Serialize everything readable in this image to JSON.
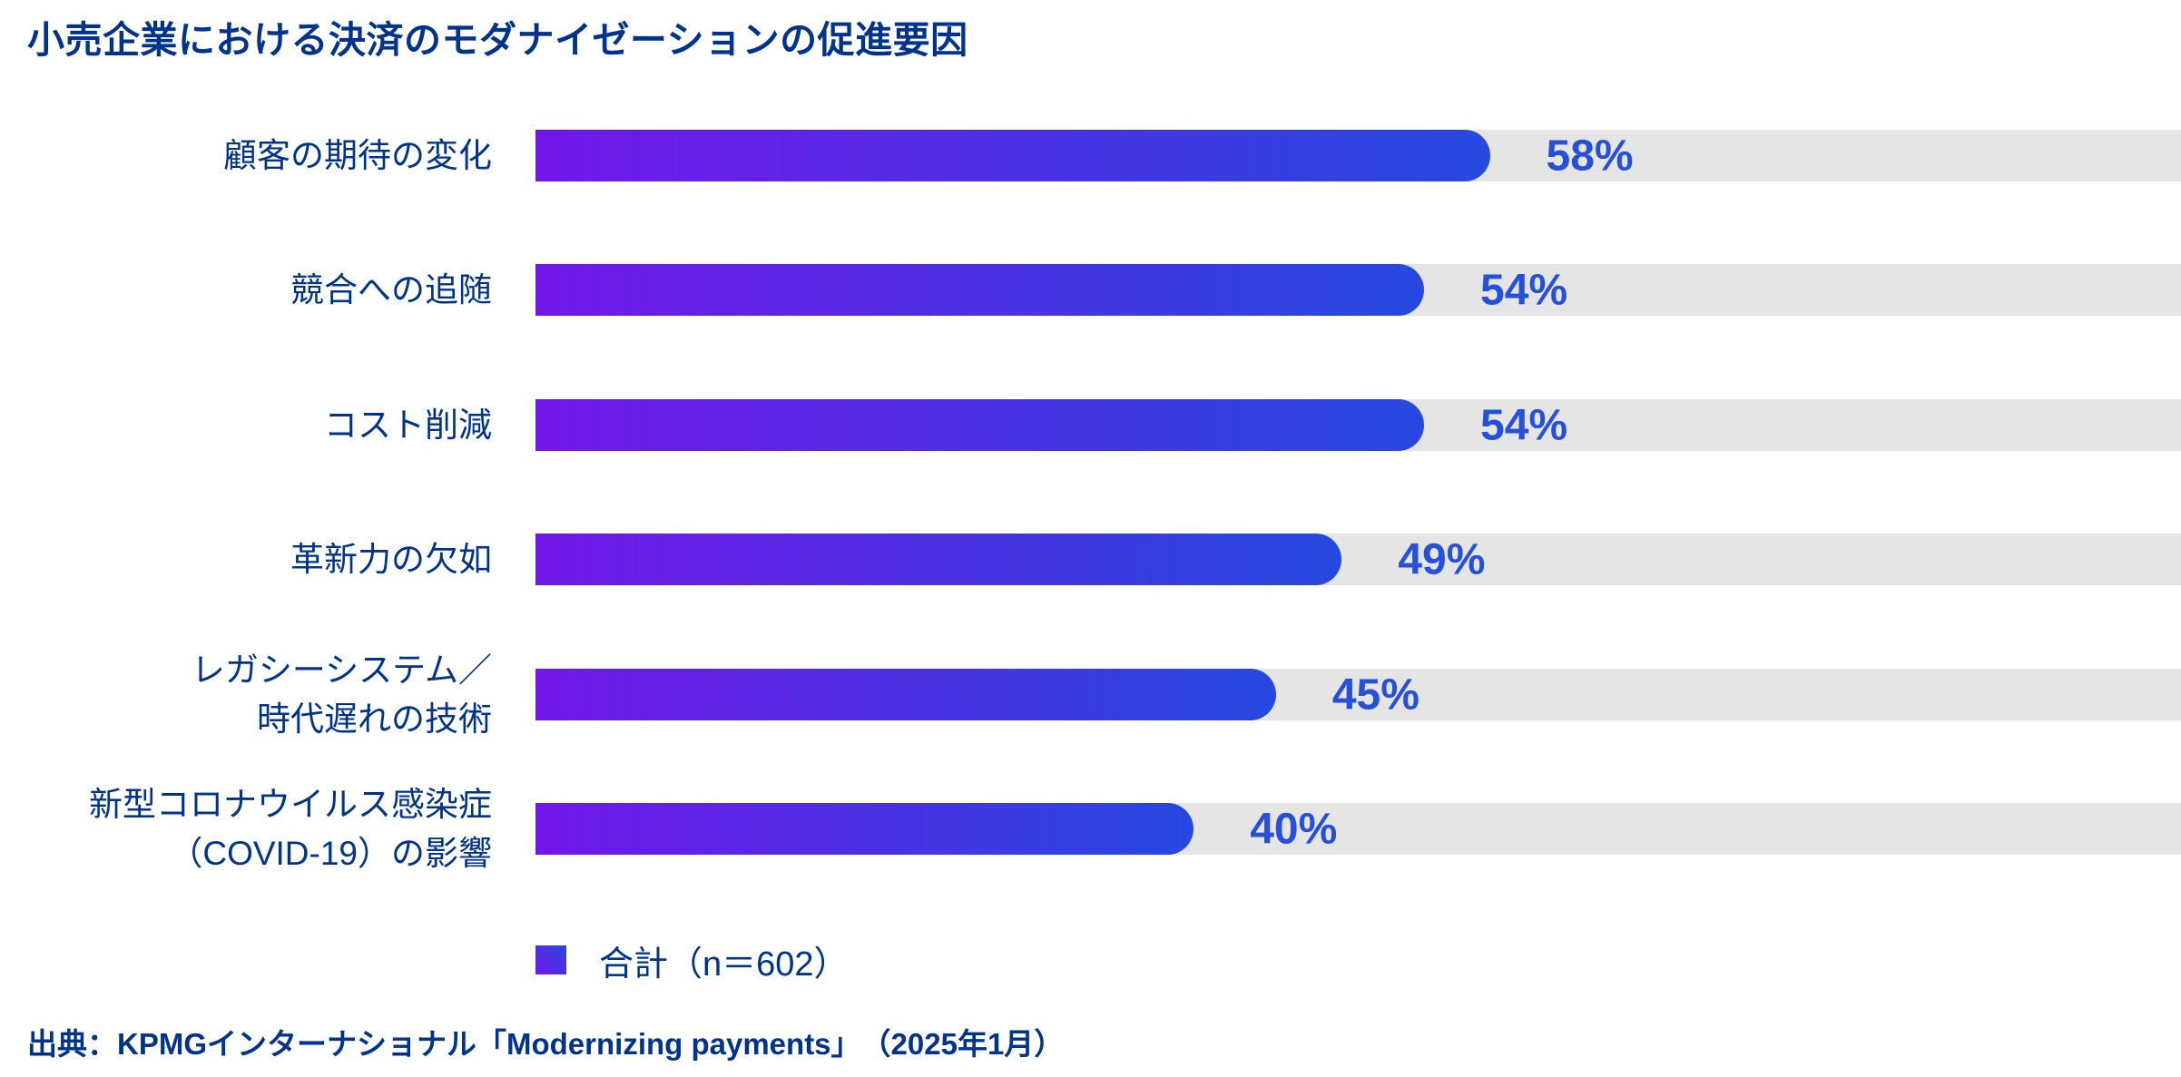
{
  "chart_data": {
    "type": "bar",
    "orientation": "horizontal",
    "title": "小売企業における決済のモダナイゼーションの促進要因",
    "categories": [
      "顧客の期待の変化",
      "競合への追随",
      "コスト削減",
      "革新力の欠如",
      "レガシーシステム／時代遅れの技術",
      "新型コロナウイルス感染症（COVID-19）の影響"
    ],
    "values": [
      58,
      54,
      54,
      49,
      45,
      40
    ],
    "xlim": [
      0,
      100
    ],
    "grid": false,
    "legend_position": "bottom-left",
    "rows": [
      {
        "label_lines": [
          "顧客の期待の変化"
        ],
        "value": 58,
        "value_label": "58%"
      },
      {
        "label_lines": [
          "競合への追随"
        ],
        "value": 54,
        "value_label": "54%"
      },
      {
        "label_lines": [
          "コスト削減"
        ],
        "value": 54,
        "value_label": "54%"
      },
      {
        "label_lines": [
          "革新力の欠如"
        ],
        "value": 49,
        "value_label": "49%"
      },
      {
        "label_lines": [
          "レガシーシステム／",
          "時代遅れの技術"
        ],
        "value": 45,
        "value_label": "45%"
      },
      {
        "label_lines": [
          "新型コロナウイルス感染症",
          "（COVID-19）の影響"
        ],
        "value": 40,
        "value_label": "40%"
      }
    ],
    "legend": "合計（n＝602）",
    "source": "出典：KPMGインターナショナル「Modernizing payments」　（2025年1月）",
    "colors": {
      "bar_gradient_start": "#7217e8",
      "bar_gradient_end": "#2649e0",
      "track": "#e5e5e5",
      "label_text": "#00338D",
      "value_text": "#2450db"
    }
  }
}
